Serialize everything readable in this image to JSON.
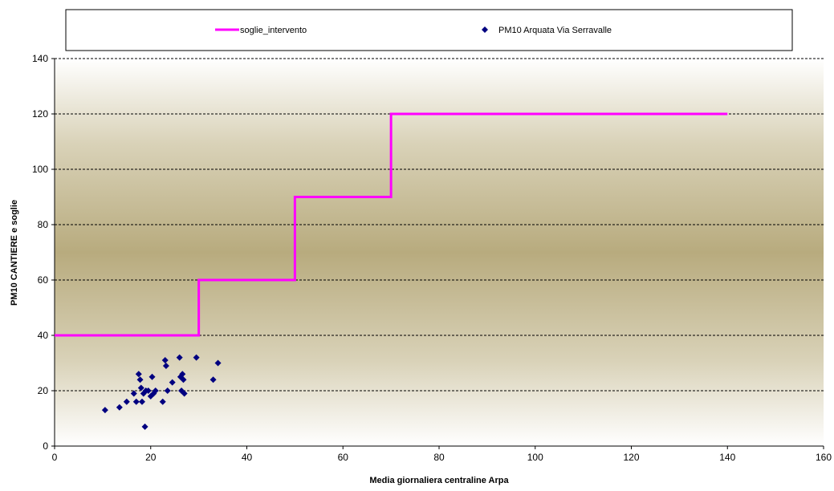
{
  "chart_data": {
    "type": "line",
    "xlabel": "Media giornaliera centraline Arpa",
    "ylabel": "PM10 CANTIERE e soglie",
    "xlim": [
      0,
      160
    ],
    "ylim": [
      0,
      140
    ],
    "x_ticks": [
      0,
      20,
      40,
      60,
      80,
      100,
      120,
      140,
      160
    ],
    "y_ticks": [
      0,
      20,
      40,
      60,
      80,
      100,
      120,
      140
    ],
    "grid": "horizontal dashed",
    "legend_placement": "top",
    "plot_background": "vertical gradient (white to olive-tan to white)",
    "series": [
      {
        "name": "soglie_intervento",
        "kind": "step-line",
        "color": "#ff00ff",
        "points": [
          [
            0,
            40
          ],
          [
            30,
            40
          ],
          [
            30,
            60
          ],
          [
            50,
            60
          ],
          [
            50,
            90
          ],
          [
            70,
            90
          ],
          [
            70,
            120
          ],
          [
            140,
            120
          ]
        ]
      },
      {
        "name": "PM10 Arquata  Via Serravalle",
        "kind": "scatter",
        "marker": "diamond",
        "color": "#000080",
        "points": [
          [
            10.5,
            13
          ],
          [
            13.5,
            14
          ],
          [
            15,
            16
          ],
          [
            16.5,
            19
          ],
          [
            17,
            16
          ],
          [
            17.5,
            26
          ],
          [
            17.8,
            24
          ],
          [
            18,
            21
          ],
          [
            18.2,
            16
          ],
          [
            18.5,
            19
          ],
          [
            18.8,
            7
          ],
          [
            19,
            20
          ],
          [
            19.5,
            20
          ],
          [
            20,
            18
          ],
          [
            20.3,
            25
          ],
          [
            20.6,
            19
          ],
          [
            21,
            20
          ],
          [
            22.5,
            16
          ],
          [
            23,
            31
          ],
          [
            23.2,
            29
          ],
          [
            23.5,
            20
          ],
          [
            24.5,
            23
          ],
          [
            26,
            32
          ],
          [
            26.2,
            25
          ],
          [
            26.4,
            20
          ],
          [
            26.6,
            26
          ],
          [
            26.8,
            24
          ],
          [
            27,
            19
          ],
          [
            29.5,
            32
          ],
          [
            33,
            24
          ],
          [
            34,
            30
          ]
        ]
      }
    ]
  }
}
